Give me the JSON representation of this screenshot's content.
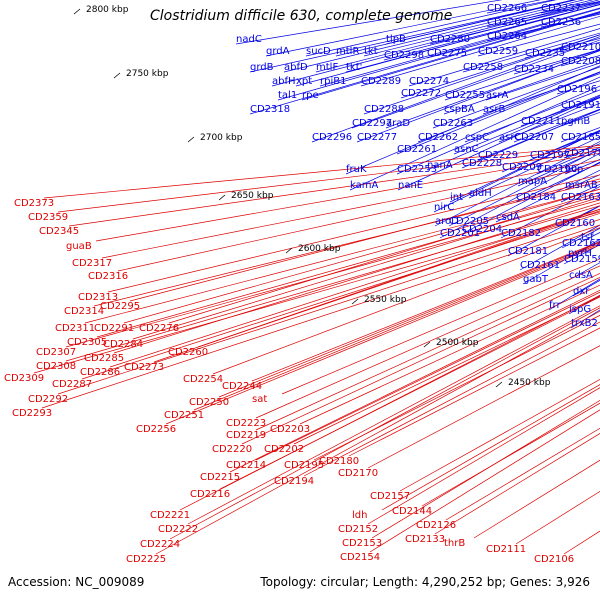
{
  "title": "Clostridium difficile 630, complete genome",
  "footer": {
    "accession": "Accession: NC_009089",
    "summary": "Topology: circular; Length: 4,290,252 bp; Genes: 3,926"
  },
  "colors": {
    "forward_label": "#0000e6",
    "reverse_label": "#dd0000",
    "backbone": "#808080",
    "arrow_blue": "#1a1aee",
    "arrow_red": "#ee1111",
    "tick_green": "#1a8a1a"
  },
  "kbp_ticks": [
    "2800 kbp",
    "2750 kbp",
    "2700 kbp",
    "2650 kbp",
    "2600 kbp",
    "2550 kbp",
    "2500 kbp",
    "2450 kbp"
  ],
  "forward_labels": [
    "CD2266",
    "CD2237",
    "CD2265",
    "CD2236",
    "nadC",
    "CD2264",
    "grdA",
    "sucD",
    "mtlR",
    "tkt",
    "tlpB",
    "CD2280",
    "CD2298",
    "CD2275",
    "CD2259",
    "CD2235",
    "CD2210",
    "grdB",
    "abfD",
    "mtlF",
    "tkt'",
    "CD2258",
    "CD2234",
    "CD2208",
    "abfH",
    "xpt",
    "rpiB1",
    "CD2289",
    "CD2274",
    "tal1",
    "rpe",
    "CD2272",
    "CD2255",
    "asrA",
    "CD2196",
    "CD2318",
    "CD2288",
    "cspBA",
    "asrB",
    "CD2191",
    "CD2297",
    "araD",
    "CD2263",
    "pgmB",
    "CD2296",
    "CD2277",
    "CD2262",
    "cspC",
    "asrC",
    "CD2211",
    "CD2207",
    "CD2185",
    "CD2261",
    "asnC",
    "CD2228",
    "CD2197",
    "CD2178",
    "fruK",
    "CD2253",
    "nanA",
    "CD2229",
    "CD2190",
    "hcp",
    "kamA",
    "nanE",
    "aldH",
    "CD2209",
    "mapA",
    "msrAB",
    "int",
    "nirC",
    "CD2205",
    "CD2184",
    "CD2163",
    "aroD",
    "csdA",
    "CD2204",
    "CD2160",
    "CD2201",
    "CD2182",
    "CD2162",
    "tsf",
    "CD2181",
    "CD2159",
    "pyrH",
    "CD2161",
    "cdsA",
    "gabT",
    "dxr",
    "frr",
    "ispG",
    "trxB2"
  ],
  "reverse_labels": [
    "CD2373",
    "CD2359",
    "CD2345",
    "guaB",
    "CD2317",
    "CD2316",
    "CD2313",
    "CD2314",
    "CD2295",
    "CD2311",
    "CD2291",
    "CD2305",
    "CD2276",
    "CD2284",
    "CD2307",
    "CD2285",
    "CD2308",
    "CD2286",
    "CD2260",
    "CD2309",
    "CD2287",
    "CD2273",
    "CD2254",
    "CD2292",
    "CD2293",
    "CD2250",
    "CD2244",
    "sat",
    "CD2251",
    "CD2256",
    "CD2223",
    "CD2219",
    "CD2203",
    "CD2220",
    "CD2202",
    "CD2214",
    "CD2195",
    "CD2180",
    "CD2215",
    "CD2194",
    "CD2170",
    "CD2216",
    "CD2157",
    "CD2144",
    "ldh",
    "CD2126",
    "CD2221",
    "CD2152",
    "CD2133",
    "CD2222",
    "CD2153",
    "thrB",
    "CD2111",
    "CD2224",
    "CD2154",
    "CD2106",
    "CD2225"
  ]
}
